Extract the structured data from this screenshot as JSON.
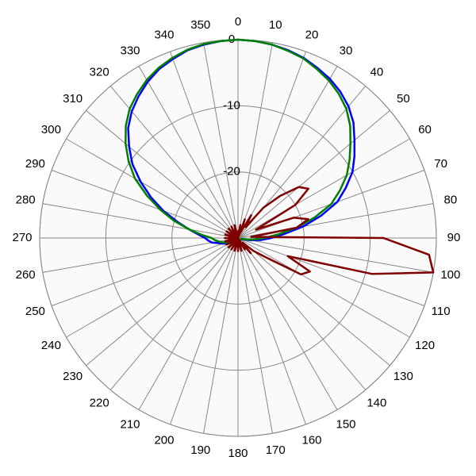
{
  "chart_data": {
    "type": "polar",
    "theta": [
      0,
      5,
      10,
      15,
      20,
      25,
      30,
      35,
      40,
      45,
      50,
      55,
      60,
      65,
      70,
      75,
      80,
      85,
      90,
      95,
      100,
      105,
      110,
      115,
      120,
      125,
      130,
      135,
      140,
      145,
      150,
      155,
      160,
      165,
      170,
      175,
      180,
      185,
      190,
      195,
      200,
      205,
      210,
      215,
      220,
      225,
      230,
      235,
      240,
      245,
      250,
      255,
      260,
      265,
      270,
      275,
      280,
      285,
      290,
      295,
      300,
      305,
      310,
      315,
      320,
      325,
      330,
      335,
      340,
      345,
      350,
      355
    ],
    "rlim": [
      -30,
      0
    ],
    "rticks": [
      -20,
      -10,
      0
    ],
    "thetaticks": [
      0,
      10,
      20,
      30,
      40,
      50,
      60,
      70,
      80,
      90,
      100,
      110,
      120,
      130,
      140,
      150,
      160,
      170,
      180,
      190,
      200,
      210,
      220,
      230,
      240,
      250,
      260,
      270,
      280,
      290,
      300,
      310,
      320,
      330,
      340,
      350
    ],
    "grid": true,
    "series": [
      {
        "color": "#0000ff",
        "values": [
          0,
          -0.1,
          -0.3,
          -0.6,
          -1,
          -1.6,
          -2.2,
          -3,
          -4,
          -5.3,
          -7,
          -8.5,
          -10,
          -12,
          -14,
          -17,
          -20,
          -23,
          -25,
          -26.5,
          -28,
          -29,
          -29.5,
          -29.5,
          -29.5,
          -29.5,
          -29.5,
          -29.5,
          -29.5,
          -29.5,
          -29.5,
          -29.5,
          -29.5,
          -29.5,
          -29.5,
          -29.5,
          -29.5,
          -29.5,
          -29.5,
          -29.5,
          -29.5,
          -29.5,
          -29.5,
          -29.5,
          -29.5,
          -29.5,
          -29.5,
          -29,
          -28.5,
          -28,
          -27.5,
          -27,
          -26,
          -25.5,
          -25,
          -24,
          -22.5,
          -20.5,
          -18,
          -15.5,
          -13,
          -10.5,
          -8.5,
          -6.5,
          -5,
          -3.8,
          -2.7,
          -1.8,
          -1.2,
          -0.6,
          -0.3,
          -0.1
        ]
      },
      {
        "color": "#008000",
        "values": [
          0,
          -0.1,
          -0.3,
          -0.7,
          -1.1,
          -1.8,
          -2.5,
          -3.4,
          -4.5,
          -6,
          -7.8,
          -9.4,
          -11,
          -13,
          -15,
          -18,
          -21,
          -24,
          -26,
          -27.5,
          -28.5,
          -29.5,
          -29.5,
          -29.5,
          -29.5,
          -29.5,
          -29.5,
          -29.5,
          -29.5,
          -29.5,
          -29.5,
          -29.5,
          -29.5,
          -29.5,
          -29.5,
          -29.5,
          -29.5,
          -29.5,
          -29.5,
          -29.5,
          -29.5,
          -29.5,
          -29.5,
          -29.5,
          -29.5,
          -29.5,
          -29.5,
          -29.5,
          -29,
          -28.5,
          -28,
          -27.5,
          -27,
          -26.5,
          -26,
          -24.5,
          -22.5,
          -20,
          -17.5,
          -14.8,
          -12,
          -9.8,
          -7.8,
          -6,
          -4.5,
          -3.4,
          -2.4,
          -1.6,
          -1,
          -0.5,
          -0.2,
          -0.1
        ]
      },
      {
        "color": "#800000",
        "values": [
          -29,
          -30,
          -28,
          -30,
          -27,
          -29,
          -26,
          -28,
          -24,
          -21,
          -18,
          -17,
          -20,
          -27,
          -21,
          -19,
          -21,
          -28,
          -8,
          -1,
          0,
          -9,
          -22,
          -18,
          -19,
          -25,
          -27,
          -29,
          -27,
          -29,
          -28,
          -30,
          -29,
          -28,
          -30,
          -29,
          -28,
          -30,
          -29,
          -28,
          -30,
          -29,
          -28,
          -30,
          -29,
          -28,
          -30,
          -29,
          -28,
          -30,
          -29,
          -28,
          -30,
          -29,
          -28,
          -30,
          -29,
          -28,
          -30,
          -29,
          -28,
          -30,
          -29,
          -28,
          -30,
          -29,
          -28,
          -30,
          -29,
          -28,
          -30,
          -29
        ]
      }
    ]
  }
}
